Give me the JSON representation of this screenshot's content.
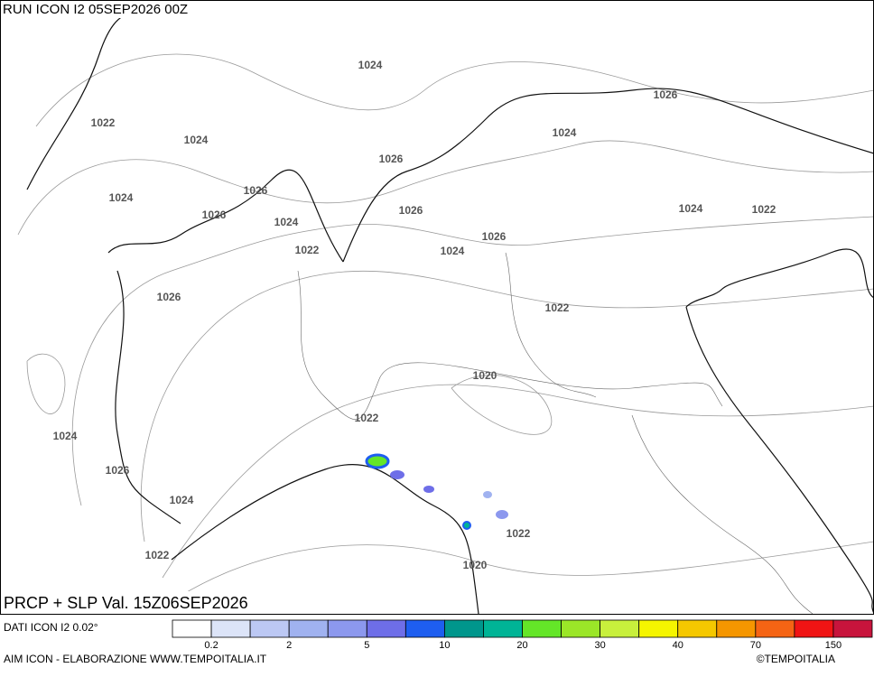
{
  "header": {
    "title": "RUN ICON I2 05SEP2026 00Z"
  },
  "map": {
    "caption": "PRCP + SLP Val. 15Z06SEP2026",
    "isobar_labels": [
      "1024",
      "1022",
      "1024",
      "1026",
      "1024",
      "1026",
      "1026",
      "1024",
      "1026",
      "1026",
      "1024",
      "1026",
      "1022",
      "1024",
      "1024",
      "1022",
      "1026",
      "1022",
      "1020",
      "1022",
      "1024",
      "1026",
      "1024",
      "1022",
      "1022",
      "1020"
    ]
  },
  "footer": {
    "source": "DATI ICON I2 0.02°",
    "credit": "AIM ICON - ELABORAZIONE WWW.TEMPOITALIA.IT",
    "copyright": "©TEMPOITALIA"
  },
  "legend": {
    "colors": [
      "#ffffff",
      "#dce4f8",
      "#bcc8f4",
      "#a0b2f0",
      "#8c98ee",
      "#6e6ee8",
      "#1e5ef0",
      "#00968c",
      "#00b496",
      "#64e628",
      "#9be628",
      "#c8f03c",
      "#f5f500",
      "#f5c800",
      "#f59600",
      "#f56414",
      "#f01414",
      "#c8143c"
    ],
    "labels": [
      "0.2",
      "2",
      "5",
      "10",
      "20",
      "30",
      "40",
      "70",
      "150"
    ]
  }
}
